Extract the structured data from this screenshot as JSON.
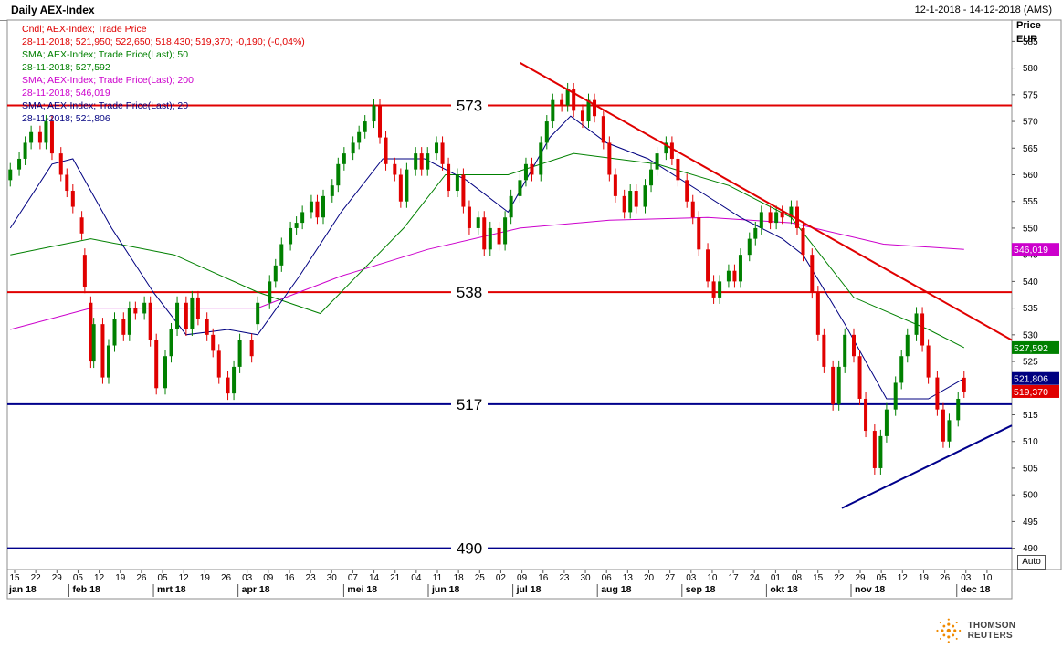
{
  "header": {
    "title": "Daily AEX-Index",
    "date_range": "12-1-2018 - 14-12-2018 (AMS)"
  },
  "legend": [
    {
      "text": "Cndl; AEX-Index; Trade Price",
      "color": "#e00000"
    },
    {
      "text": "28-11-2018; 521,950; 522,650; 518,430; 519,370; -0,190; (-0,04%)",
      "color": "#e00000"
    },
    {
      "text": "SMA; AEX-Index; Trade Price(Last);  50",
      "color": "#008000"
    },
    {
      "text": "28-11-2018; 527,592",
      "color": "#008000"
    },
    {
      "text": "SMA; AEX-Index; Trade Price(Last);  200",
      "color": "#cc00cc"
    },
    {
      "text": "28-11-2018; 546,019",
      "color": "#cc00cc"
    },
    {
      "text": "SMA; AEX-Index; Trade Price(Last);  20",
      "color": "#000080"
    },
    {
      "text": "28-11-2018; 521,806",
      "color": "#000080"
    }
  ],
  "axis": {
    "price_label": "Price",
    "currency_label": "EUR",
    "auto_label": "Auto"
  },
  "brand": {
    "name": "THOMSON REUTERS"
  },
  "colors": {
    "up": "#008000",
    "down": "#e00000",
    "sma50": "#008000",
    "sma200": "#cc00cc",
    "sma20": "#000080",
    "resistance": "#e00000",
    "support": "#00008b"
  },
  "chart_data": {
    "type": "candlestick",
    "title": "Daily AEX-Index",
    "ylabel": "Price EUR",
    "ylim": [
      486,
      589
    ],
    "yticks": [
      490,
      495,
      500,
      505,
      510,
      515,
      520,
      525,
      530,
      535,
      540,
      545,
      550,
      555,
      560,
      565,
      570,
      575,
      580,
      585
    ],
    "x_day_ticks": [
      "15",
      "22",
      "29",
      "05",
      "12",
      "19",
      "26",
      "05",
      "12",
      "19",
      "26",
      "03",
      "09",
      "16",
      "23",
      "30",
      "07",
      "14",
      "21",
      "04",
      "11",
      "18",
      "25",
      "02",
      "09",
      "16",
      "23",
      "30",
      "06",
      "13",
      "20",
      "27",
      "03",
      "10",
      "17",
      "24",
      "01",
      "08",
      "15",
      "22",
      "29",
      "05",
      "12",
      "19",
      "26",
      "03",
      "10"
    ],
    "x_month_labels": [
      "jan 18",
      "feb 18",
      "mrt 18",
      "apr 18",
      "mei 18",
      "jun 18",
      "jul 18",
      "aug 18",
      "sep 18",
      "okt 18",
      "nov 18",
      "dec 18"
    ],
    "horizontal_levels": [
      {
        "value": 573,
        "label": "573",
        "color": "#e00000"
      },
      {
        "value": 538,
        "label": "538",
        "color": "#e00000"
      },
      {
        "value": 517,
        "label": "517",
        "color": "#00008b"
      },
      {
        "value": 490,
        "label": "490",
        "color": "#00008b"
      }
    ],
    "trendlines": [
      {
        "name": "downtrend",
        "color": "#e00000",
        "from": [
          "2018-07-02",
          581
        ],
        "to": [
          "2018-12-14",
          529
        ]
      },
      {
        "name": "uptrend",
        "color": "#00008b",
        "from": [
          "2018-10-18",
          497.5
        ],
        "to": [
          "2018-12-14",
          513
        ]
      }
    ],
    "sma_anchors": {
      "sma50": [
        [
          "2018-01-12",
          545
        ],
        [
          "2018-02-08",
          548
        ],
        [
          "2018-03-08",
          545
        ],
        [
          "2018-04-05",
          538
        ],
        [
          "2018-04-26",
          534
        ],
        [
          "2018-05-24",
          550
        ],
        [
          "2018-06-07",
          560
        ],
        [
          "2018-06-28",
          560
        ],
        [
          "2018-07-20",
          564
        ],
        [
          "2018-08-17",
          562
        ],
        [
          "2018-09-10",
          558
        ],
        [
          "2018-10-01",
          552
        ],
        [
          "2018-10-22",
          537
        ],
        [
          "2018-11-16",
          531
        ],
        [
          "2018-11-28",
          527.592
        ]
      ],
      "sma200": [
        [
          "2018-01-12",
          531
        ],
        [
          "2018-02-08",
          535
        ],
        [
          "2018-03-08",
          535
        ],
        [
          "2018-04-05",
          535
        ],
        [
          "2018-05-03",
          541
        ],
        [
          "2018-06-01",
          546
        ],
        [
          "2018-07-02",
          550
        ],
        [
          "2018-08-01",
          551.5
        ],
        [
          "2018-09-03",
          552
        ],
        [
          "2018-10-01",
          551
        ],
        [
          "2018-11-01",
          547
        ],
        [
          "2018-11-28",
          546.019
        ]
      ],
      "sma20": [
        [
          "2018-01-12",
          550
        ],
        [
          "2018-01-26",
          562
        ],
        [
          "2018-02-02",
          563
        ],
        [
          "2018-02-15",
          550
        ],
        [
          "2018-03-01",
          538
        ],
        [
          "2018-03-12",
          530
        ],
        [
          "2018-03-26",
          531
        ],
        [
          "2018-04-05",
          530
        ],
        [
          "2018-04-19",
          541
        ],
        [
          "2018-05-03",
          553
        ],
        [
          "2018-05-17",
          563
        ],
        [
          "2018-05-31",
          563
        ],
        [
          "2018-06-14",
          559
        ],
        [
          "2018-06-28",
          553
        ],
        [
          "2018-07-12",
          567
        ],
        [
          "2018-07-19",
          571
        ],
        [
          "2018-07-31",
          566
        ],
        [
          "2018-08-14",
          563
        ],
        [
          "2018-08-31",
          557
        ],
        [
          "2018-09-14",
          552
        ],
        [
          "2018-09-28",
          548
        ],
        [
          "2018-10-05",
          545
        ],
        [
          "2018-10-19",
          532
        ],
        [
          "2018-11-02",
          518
        ],
        [
          "2018-11-16",
          518
        ],
        [
          "2018-11-28",
          521.806
        ]
      ]
    },
    "candles": [
      [
        "2018-01-12",
        559,
        561
      ],
      [
        "2018-01-15",
        561,
        563
      ],
      [
        "2018-01-17",
        563,
        566
      ],
      [
        "2018-01-19",
        566,
        568
      ],
      [
        "2018-01-22",
        568,
        566
      ],
      [
        "2018-01-24",
        566,
        570
      ],
      [
        "2018-01-26",
        570,
        564
      ],
      [
        "2018-01-29",
        564,
        560
      ],
      [
        "2018-01-31",
        560,
        557
      ],
      [
        "2018-02-02",
        557,
        554
      ],
      [
        "2018-02-05",
        552,
        549
      ],
      [
        "2018-02-06",
        545,
        539
      ],
      [
        "2018-02-08",
        536,
        525
      ],
      [
        "2018-02-09",
        525,
        532
      ],
      [
        "2018-02-12",
        532,
        522
      ],
      [
        "2018-02-14",
        522,
        528
      ],
      [
        "2018-02-16",
        528,
        533
      ],
      [
        "2018-02-19",
        533,
        530
      ],
      [
        "2018-02-21",
        530,
        535
      ],
      [
        "2018-02-23",
        535,
        534
      ],
      [
        "2018-02-26",
        534,
        536
      ],
      [
        "2018-02-28",
        536,
        529
      ],
      [
        "2018-03-02",
        529,
        520
      ],
      [
        "2018-03-05",
        520,
        526
      ],
      [
        "2018-03-07",
        526,
        531
      ],
      [
        "2018-03-09",
        531,
        536
      ],
      [
        "2018-03-12",
        536,
        531
      ],
      [
        "2018-03-14",
        531,
        537
      ],
      [
        "2018-03-16",
        537,
        533
      ],
      [
        "2018-03-19",
        533,
        530
      ],
      [
        "2018-03-21",
        530,
        527
      ],
      [
        "2018-03-23",
        527,
        522
      ],
      [
        "2018-03-26",
        522,
        519
      ],
      [
        "2018-03-28",
        519,
        524
      ],
      [
        "2018-03-30",
        524,
        529
      ],
      [
        "2018-04-03",
        529,
        526
      ],
      [
        "2018-04-05",
        532,
        536
      ],
      [
        "2018-04-09",
        536,
        540
      ],
      [
        "2018-04-11",
        540,
        543
      ],
      [
        "2018-04-13",
        543,
        547
      ],
      [
        "2018-04-16",
        547,
        550
      ],
      [
        "2018-04-18",
        550,
        551
      ],
      [
        "2018-04-20",
        551,
        553
      ],
      [
        "2018-04-23",
        553,
        555
      ],
      [
        "2018-04-25",
        555,
        552
      ],
      [
        "2018-04-27",
        552,
        556
      ],
      [
        "2018-04-30",
        556,
        558
      ],
      [
        "2018-05-02",
        558,
        562
      ],
      [
        "2018-05-04",
        562,
        564
      ],
      [
        "2018-05-07",
        564,
        566
      ],
      [
        "2018-05-09",
        566,
        568
      ],
      [
        "2018-05-11",
        568,
        570
      ],
      [
        "2018-05-14",
        570,
        573
      ],
      [
        "2018-05-16",
        573,
        567
      ],
      [
        "2018-05-18",
        567,
        562
      ],
      [
        "2018-05-21",
        562,
        560
      ],
      [
        "2018-05-23",
        560,
        555
      ],
      [
        "2018-05-25",
        555,
        561
      ],
      [
        "2018-05-28",
        561,
        564
      ],
      [
        "2018-05-30",
        564,
        561
      ],
      [
        "2018-06-01",
        561,
        564
      ],
      [
        "2018-06-04",
        564,
        566
      ],
      [
        "2018-06-06",
        566,
        562
      ],
      [
        "2018-06-08",
        562,
        557
      ],
      [
        "2018-06-11",
        557,
        560
      ],
      [
        "2018-06-13",
        560,
        554
      ],
      [
        "2018-06-15",
        554,
        550
      ],
      [
        "2018-06-18",
        550,
        552
      ],
      [
        "2018-06-20",
        552,
        546
      ],
      [
        "2018-06-22",
        546,
        550
      ],
      [
        "2018-06-25",
        550,
        547
      ],
      [
        "2018-06-27",
        547,
        552
      ],
      [
        "2018-06-29",
        552,
        556
      ],
      [
        "2018-07-02",
        556,
        559
      ],
      [
        "2018-07-04",
        559,
        562
      ],
      [
        "2018-07-06",
        562,
        560
      ],
      [
        "2018-07-09",
        560,
        566
      ],
      [
        "2018-07-11",
        566,
        570
      ],
      [
        "2018-07-13",
        570,
        574
      ],
      [
        "2018-07-16",
        574,
        573
      ],
      [
        "2018-07-18",
        573,
        576
      ],
      [
        "2018-07-20",
        576,
        572
      ],
      [
        "2018-07-23",
        572,
        570
      ],
      [
        "2018-07-25",
        570,
        574
      ],
      [
        "2018-07-27",
        574,
        571
      ],
      [
        "2018-07-30",
        571,
        566
      ],
      [
        "2018-08-01",
        566,
        560
      ],
      [
        "2018-08-03",
        560,
        556
      ],
      [
        "2018-08-06",
        556,
        553
      ],
      [
        "2018-08-08",
        553,
        557
      ],
      [
        "2018-08-10",
        557,
        554
      ],
      [
        "2018-08-13",
        554,
        558
      ],
      [
        "2018-08-15",
        558,
        561
      ],
      [
        "2018-08-17",
        561,
        564
      ],
      [
        "2018-08-20",
        564,
        566
      ],
      [
        "2018-08-22",
        566,
        563
      ],
      [
        "2018-08-24",
        563,
        559
      ],
      [
        "2018-08-27",
        559,
        555
      ],
      [
        "2018-08-29",
        555,
        552
      ],
      [
        "2018-08-31",
        552,
        546
      ],
      [
        "2018-09-03",
        546,
        540
      ],
      [
        "2018-09-05",
        540,
        537
      ],
      [
        "2018-09-07",
        537,
        540
      ],
      [
        "2018-09-10",
        540,
        542
      ],
      [
        "2018-09-12",
        542,
        540
      ],
      [
        "2018-09-14",
        540,
        545
      ],
      [
        "2018-09-17",
        545,
        548
      ],
      [
        "2018-09-19",
        548,
        550
      ],
      [
        "2018-09-21",
        550,
        553
      ],
      [
        "2018-09-24",
        553,
        551
      ],
      [
        "2018-09-26",
        551,
        553
      ],
      [
        "2018-09-28",
        553,
        552
      ],
      [
        "2018-10-01",
        552,
        554
      ],
      [
        "2018-10-03",
        554,
        550
      ],
      [
        "2018-10-05",
        550,
        545
      ],
      [
        "2018-10-08",
        545,
        538
      ],
      [
        "2018-10-10",
        538,
        530
      ],
      [
        "2018-10-12",
        530,
        524
      ],
      [
        "2018-10-15",
        524,
        517
      ],
      [
        "2018-10-17",
        517,
        524
      ],
      [
        "2018-10-19",
        524,
        530
      ],
      [
        "2018-10-22",
        530,
        526
      ],
      [
        "2018-10-24",
        526,
        518
      ],
      [
        "2018-10-26",
        518,
        512
      ],
      [
        "2018-10-29",
        512,
        505
      ],
      [
        "2018-10-31",
        505,
        511
      ],
      [
        "2018-11-02",
        511,
        516
      ],
      [
        "2018-11-05",
        516,
        521
      ],
      [
        "2018-11-07",
        521,
        526
      ],
      [
        "2018-11-09",
        526,
        530
      ],
      [
        "2018-11-12",
        530,
        534
      ],
      [
        "2018-11-14",
        534,
        528
      ],
      [
        "2018-11-16",
        528,
        522
      ],
      [
        "2018-11-19",
        522,
        516
      ],
      [
        "2018-11-21",
        516,
        510
      ],
      [
        "2018-11-23",
        510,
        514
      ],
      [
        "2018-11-26",
        514,
        518
      ],
      [
        "2018-11-28",
        521.95,
        519.37
      ]
    ],
    "last_labels": [
      {
        "value": 527.592,
        "label": "527,592",
        "color": "#008000"
      },
      {
        "value": 546.019,
        "label": "546,019",
        "color": "#cc00cc"
      },
      {
        "value": 521.806,
        "label": "521,806",
        "color": "#000080"
      },
      {
        "value": 519.37,
        "label": "519,370",
        "color": "#e00000"
      }
    ]
  }
}
